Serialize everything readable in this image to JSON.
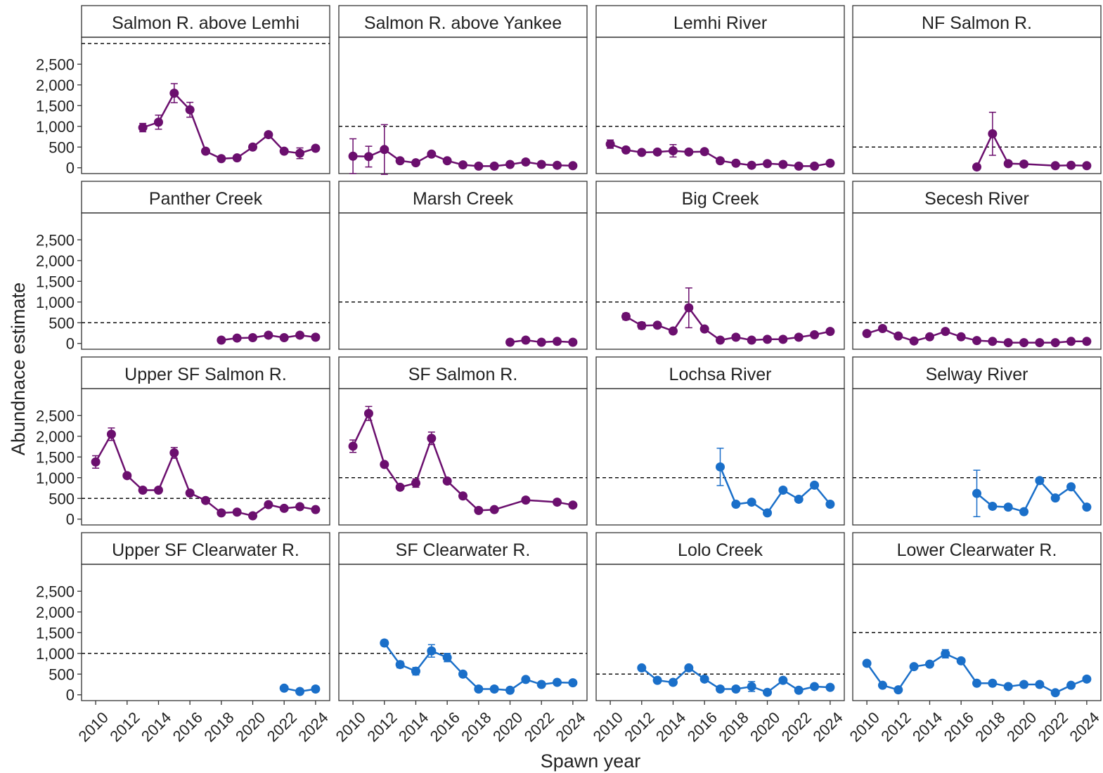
{
  "chart_data": {
    "type": "line",
    "xlabel": "Spawn year",
    "ylabel": "Abundnace estimate",
    "xlim": [
      2009.1,
      2024.9
    ],
    "ylim": [
      -140,
      3150
    ],
    "xticks": [
      2010,
      2012,
      2014,
      2016,
      2018,
      2020,
      2022,
      2024
    ],
    "yticks": [
      0,
      500,
      {
        "value": 1000,
        "label": "1,000"
      },
      {
        "value": 1500,
        "label": "1,500"
      },
      {
        "value": 2000,
        "label": "2,000"
      },
      {
        "value": 2500,
        "label": "2,500"
      }
    ],
    "panels": [
      {
        "title": "Salmon R. above Lemhi",
        "color": "#6b0f6e",
        "threshold": 3000,
        "x": [
          2013,
          2014,
          2015,
          2016,
          2017,
          2018,
          2019,
          2020,
          2021,
          2022,
          2023,
          2024
        ],
        "values": [
          970,
          1100,
          1800,
          1400,
          400,
          220,
          240,
          500,
          800,
          400,
          350,
          470
        ],
        "errors": [
          100,
          170,
          230,
          180,
          null,
          null,
          null,
          null,
          null,
          null,
          130,
          null
        ]
      },
      {
        "title": "Salmon R. above Yankee",
        "color": "#6b0f6e",
        "threshold": 1000,
        "x": [
          2010,
          2011,
          2012,
          2013,
          2014,
          2015,
          2016,
          2017,
          2018,
          2019,
          2020,
          2021,
          2022,
          2023,
          2024
        ],
        "values": [
          280,
          270,
          440,
          170,
          120,
          330,
          170,
          70,
          40,
          40,
          80,
          140,
          80,
          60,
          50
        ],
        "errors": [
          420,
          250,
          600,
          null,
          null,
          null,
          null,
          null,
          null,
          null,
          null,
          null,
          null,
          null,
          null
        ]
      },
      {
        "title": "Lemhi River",
        "color": "#6b0f6e",
        "threshold": 1000,
        "x": [
          2010,
          2011,
          2012,
          2013,
          2014,
          2015,
          2016,
          2017,
          2018,
          2019,
          2020,
          2021,
          2022,
          2023,
          2024
        ],
        "values": [
          570,
          430,
          370,
          380,
          410,
          380,
          390,
          170,
          110,
          60,
          100,
          80,
          40,
          40,
          110
        ],
        "errors": [
          100,
          null,
          null,
          null,
          150,
          null,
          null,
          null,
          null,
          null,
          null,
          null,
          null,
          null,
          null
        ]
      },
      {
        "title": "NF Salmon R.",
        "color": "#6b0f6e",
        "threshold": 500,
        "x": [
          2017,
          2018,
          2019,
          2020,
          2022,
          2023,
          2024
        ],
        "values": [
          20,
          820,
          100,
          90,
          50,
          60,
          50
        ],
        "errors": [
          null,
          520,
          null,
          null,
          null,
          null,
          null
        ]
      },
      {
        "title": "Panther Creek",
        "color": "#6b0f6e",
        "threshold": 500,
        "x": [
          2018,
          2019,
          2020,
          2021,
          2022,
          2023,
          2024
        ],
        "values": [
          80,
          130,
          140,
          200,
          140,
          200,
          150
        ],
        "errors": [
          null,
          null,
          null,
          null,
          null,
          null,
          null
        ]
      },
      {
        "title": "Marsh Creek",
        "color": "#6b0f6e",
        "threshold": 1000,
        "x": [
          2020,
          2021,
          2022,
          2023,
          2024
        ],
        "values": [
          30,
          80,
          30,
          50,
          30
        ],
        "errors": [
          null,
          null,
          null,
          null,
          null
        ]
      },
      {
        "title": "Big Creek",
        "color": "#6b0f6e",
        "threshold": 1000,
        "x": [
          2011,
          2012,
          2013,
          2014,
          2015,
          2016,
          2017,
          2018,
          2019,
          2020,
          2021,
          2022,
          2023,
          2024
        ],
        "values": [
          650,
          430,
          440,
          300,
          860,
          350,
          80,
          150,
          80,
          100,
          100,
          150,
          210,
          290
        ],
        "errors": [
          80,
          80,
          null,
          null,
          480,
          null,
          null,
          null,
          null,
          null,
          null,
          null,
          null,
          null
        ]
      },
      {
        "title": "Secesh River",
        "color": "#6b0f6e",
        "threshold": 500,
        "x": [
          2010,
          2011,
          2012,
          2013,
          2014,
          2015,
          2016,
          2017,
          2018,
          2019,
          2020,
          2021,
          2022,
          2023,
          2024
        ],
        "values": [
          240,
          360,
          180,
          60,
          160,
          290,
          160,
          70,
          50,
          20,
          20,
          20,
          20,
          50,
          50
        ],
        "errors": [
          null,
          null,
          null,
          null,
          null,
          null,
          null,
          null,
          null,
          null,
          null,
          null,
          null,
          null,
          null
        ]
      },
      {
        "title": "Upper SF Salmon R.",
        "color": "#6b0f6e",
        "threshold": 500,
        "x": [
          2010,
          2011,
          2012,
          2013,
          2014,
          2015,
          2016,
          2017,
          2018,
          2019,
          2020,
          2021,
          2022,
          2023,
          2024
        ],
        "values": [
          1380,
          2050,
          1050,
          700,
          700,
          1600,
          630,
          450,
          150,
          170,
          80,
          350,
          260,
          300,
          230
        ],
        "errors": [
          150,
          150,
          null,
          null,
          null,
          130,
          null,
          null,
          null,
          null,
          null,
          null,
          null,
          null,
          null
        ]
      },
      {
        "title": "SF Salmon R.",
        "color": "#6b0f6e",
        "threshold": 1000,
        "x": [
          2010,
          2011,
          2012,
          2013,
          2014,
          2015,
          2016,
          2017,
          2018,
          2019,
          2021,
          2023,
          2024
        ],
        "values": [
          1760,
          2550,
          1320,
          770,
          870,
          1950,
          920,
          560,
          210,
          230,
          460,
          410,
          340
        ],
        "errors": [
          150,
          170,
          null,
          null,
          100,
          150,
          null,
          null,
          null,
          null,
          null,
          null,
          null
        ]
      },
      {
        "title": "Lochsa River",
        "color": "#1a6fc9",
        "threshold": 1000,
        "x": [
          2017,
          2018,
          2019,
          2020,
          2021,
          2022,
          2023,
          2024
        ],
        "values": [
          1260,
          360,
          410,
          150,
          700,
          480,
          820,
          360
        ],
        "errors": [
          450,
          null,
          null,
          null,
          null,
          null,
          null,
          null
        ]
      },
      {
        "title": "Selway River",
        "color": "#1a6fc9",
        "threshold": 1000,
        "x": [
          2017,
          2018,
          2019,
          2020,
          2021,
          2022,
          2023,
          2024
        ],
        "values": [
          620,
          310,
          290,
          180,
          930,
          510,
          780,
          290
        ],
        "errors": [
          560,
          null,
          null,
          null,
          null,
          null,
          null,
          null
        ]
      },
      {
        "title": "Upper SF Clearwater R.",
        "color": "#1a6fc9",
        "threshold": 1000,
        "x": [
          2022,
          2023,
          2024
        ],
        "values": [
          160,
          80,
          140
        ],
        "errors": [
          null,
          null,
          null
        ]
      },
      {
        "title": "SF Clearwater R.",
        "color": "#1a6fc9",
        "threshold": 1000,
        "x": [
          2012,
          2013,
          2014,
          2015,
          2016,
          2017,
          2018,
          2019,
          2020,
          2021,
          2022,
          2023,
          2024
        ],
        "values": [
          1250,
          730,
          570,
          1060,
          900,
          500,
          140,
          140,
          110,
          370,
          250,
          300,
          290
        ],
        "errors": [
          70,
          80,
          90,
          150,
          100,
          null,
          null,
          null,
          null,
          null,
          null,
          null,
          null
        ]
      },
      {
        "title": "Lolo Creek",
        "color": "#1a6fc9",
        "threshold": 500,
        "x": [
          2012,
          2013,
          2014,
          2015,
          2016,
          2017,
          2018,
          2019,
          2020,
          2021,
          2022,
          2023,
          2024
        ],
        "values": [
          650,
          350,
          300,
          650,
          380,
          140,
          140,
          200,
          60,
          350,
          110,
          200,
          180
        ],
        "errors": [
          null,
          null,
          null,
          null,
          null,
          null,
          null,
          120,
          null,
          null,
          null,
          null,
          null
        ]
      },
      {
        "title": "Lower Clearwater R.",
        "color": "#1a6fc9",
        "threshold": 1500,
        "x": [
          2010,
          2011,
          2012,
          2013,
          2014,
          2015,
          2016,
          2017,
          2018,
          2019,
          2020,
          2021,
          2022,
          2023,
          2024
        ],
        "values": [
          760,
          230,
          120,
          680,
          740,
          990,
          820,
          280,
          280,
          200,
          250,
          250,
          50,
          230,
          380
        ],
        "errors": [
          null,
          null,
          null,
          null,
          null,
          100,
          null,
          null,
          null,
          null,
          null,
          null,
          null,
          null,
          null
        ]
      }
    ]
  }
}
